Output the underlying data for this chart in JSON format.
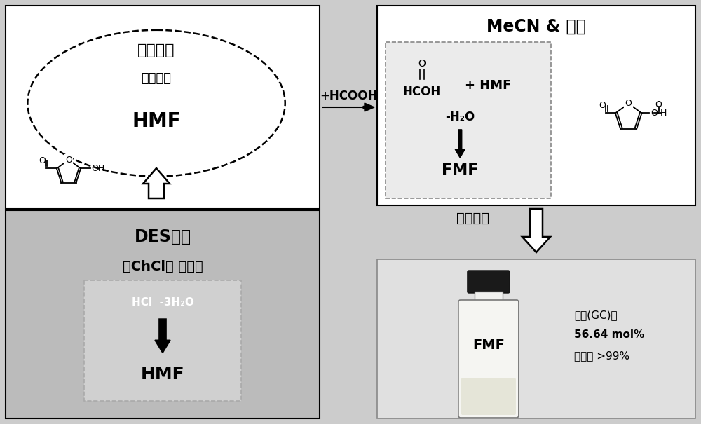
{
  "fig_bg": "#cccccc",
  "left_top_bg": "#ffffff",
  "left_bot_bg": "#bbbbbb",
  "right_top_bg": "#ffffff",
  "right_bot_bg": "#e0e0e0",
  "inner_dashed_bg": "#d8d8d8",
  "texts": {
    "extract_solvent": "萄取溶剂",
    "acetonitrile": "（乙腔）",
    "HMF_top": "HMF",
    "HCOOH_arrow": "+HCOOH",
    "MeCN_title": "MeCN & 甲酸",
    "separation": "分离纯化",
    "DES_title": "DES体系",
    "ChCl": "（ChCl＋ 果糖）",
    "HCl_H2O": "HCl  -3H₂O",
    "HMF_bottom": "HMF",
    "FMF_label": "FMF",
    "yield_line1": "得率(GC)：",
    "yield_line2": "56.64 mol%",
    "yield_line3": "纯度： >99%",
    "HCOH": "HCOH",
    "plus_HMF": "+ HMF",
    "minus_H2O": "-H₂O",
    "FMF_reaction": "FMF",
    "O_above": "O",
    "down_arrow_label": "↓"
  }
}
